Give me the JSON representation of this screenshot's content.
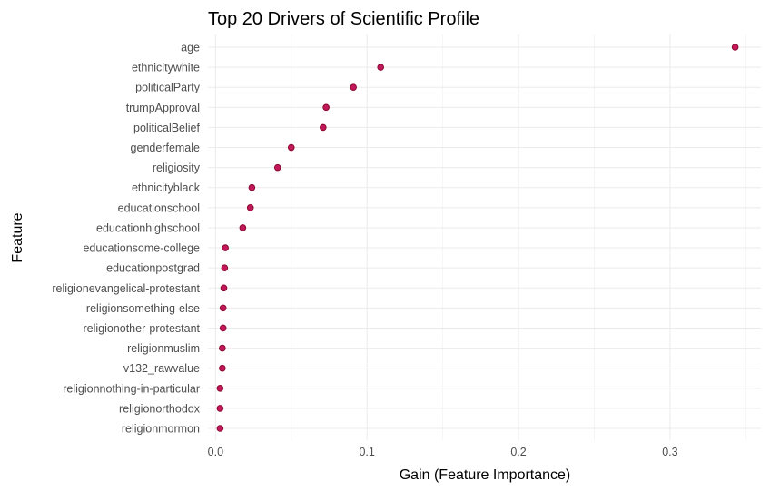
{
  "chart_data": {
    "type": "scatter",
    "title": "Top 20 Drivers of Scientific Profile",
    "xlabel": "Gain (Feature Importance)",
    "ylabel": "Feature",
    "xlim": [
      -0.005,
      0.36
    ],
    "xticks": [
      0.0,
      0.1,
      0.2,
      0.3
    ],
    "xtick_labels": [
      "0.0",
      "0.1",
      "0.2",
      "0.3"
    ],
    "grid": true,
    "point_color": "#c2185b",
    "categories": [
      "age",
      "ethnicitywhite",
      "politicalParty",
      "trumpApproval",
      "politicalBelief",
      "genderfemale",
      "religiosity",
      "ethnicityblack",
      "educationschool",
      "educationhighschool",
      "educationsome-college",
      "educationpostgrad",
      "religionevangelical-protestant",
      "religionsomething-else",
      "religionother-protestant",
      "religionmuslim",
      "v132_rawvalue",
      "religionnothing-in-particular",
      "religionorthodox",
      "religionmormon"
    ],
    "values": [
      0.343,
      0.109,
      0.091,
      0.073,
      0.071,
      0.05,
      0.041,
      0.024,
      0.023,
      0.018,
      0.0065,
      0.006,
      0.0055,
      0.005,
      0.005,
      0.0045,
      0.0045,
      0.003,
      0.003,
      0.003
    ]
  }
}
